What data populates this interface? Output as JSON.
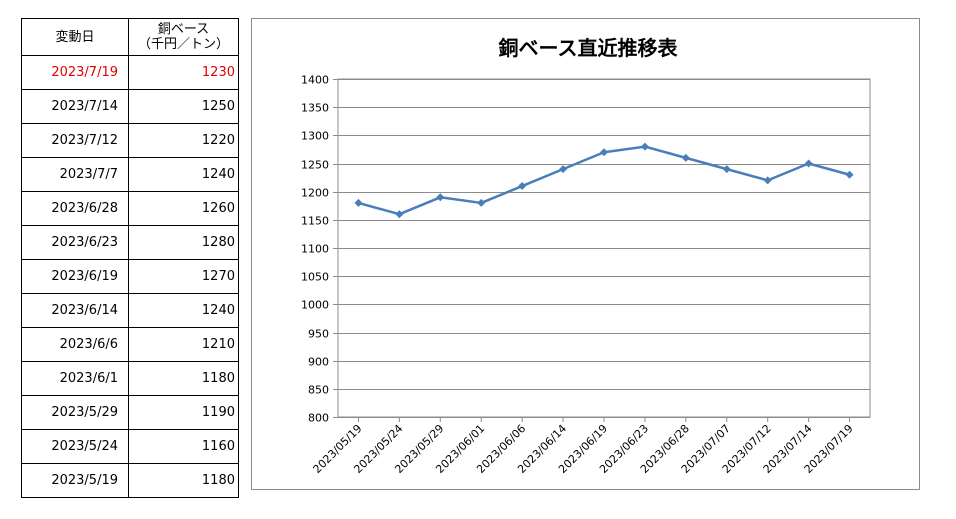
{
  "table": {
    "header_date": "変動日",
    "header_price_line1": "銅ベース",
    "header_price_line2": "（千円／トン）",
    "rows": [
      {
        "date": "2023/7/19",
        "price": "1230"
      },
      {
        "date": "2023/7/14",
        "price": "1250"
      },
      {
        "date": "2023/7/12",
        "price": "1220"
      },
      {
        "date": "2023/7/7",
        "price": "1240"
      },
      {
        "date": "2023/6/28",
        "price": "1260"
      },
      {
        "date": "2023/6/23",
        "price": "1280"
      },
      {
        "date": "2023/6/19",
        "price": "1270"
      },
      {
        "date": "2023/6/14",
        "price": "1240"
      },
      {
        "date": "2023/6/6",
        "price": "1210"
      },
      {
        "date": "2023/6/1",
        "price": "1180"
      },
      {
        "date": "2023/5/29",
        "price": "1190"
      },
      {
        "date": "2023/5/24",
        "price": "1160"
      },
      {
        "date": "2023/5/19",
        "price": "1180"
      }
    ]
  },
  "colors": {
    "latest_row": "#e00000",
    "series_line": "#4a7ebb",
    "gridline": "#8c8c8c"
  },
  "chart_data": {
    "type": "line",
    "title": "銅ベース直近推移表",
    "xlabel": "",
    "ylabel": "",
    "ylim": [
      800,
      1400
    ],
    "y_ticks": [
      "1400",
      "1350",
      "1300",
      "1250",
      "1200",
      "1150",
      "1100",
      "1050",
      "1000",
      "950",
      "900",
      "850",
      "800"
    ],
    "grid": true,
    "legend": "none",
    "categories": [
      "2023/05/19",
      "2023/05/24",
      "2023/05/29",
      "2023/06/01",
      "2023/06/06",
      "2023/06/14",
      "2023/06/19",
      "2023/06/23",
      "2023/06/28",
      "2023/07/07",
      "2023/07/12",
      "2023/07/14",
      "2023/07/19"
    ],
    "series": [
      {
        "values": [
          1180,
          1160,
          1190,
          1180,
          1210,
          1240,
          1270,
          1280,
          1260,
          1240,
          1220,
          1250,
          1230
        ]
      }
    ]
  }
}
